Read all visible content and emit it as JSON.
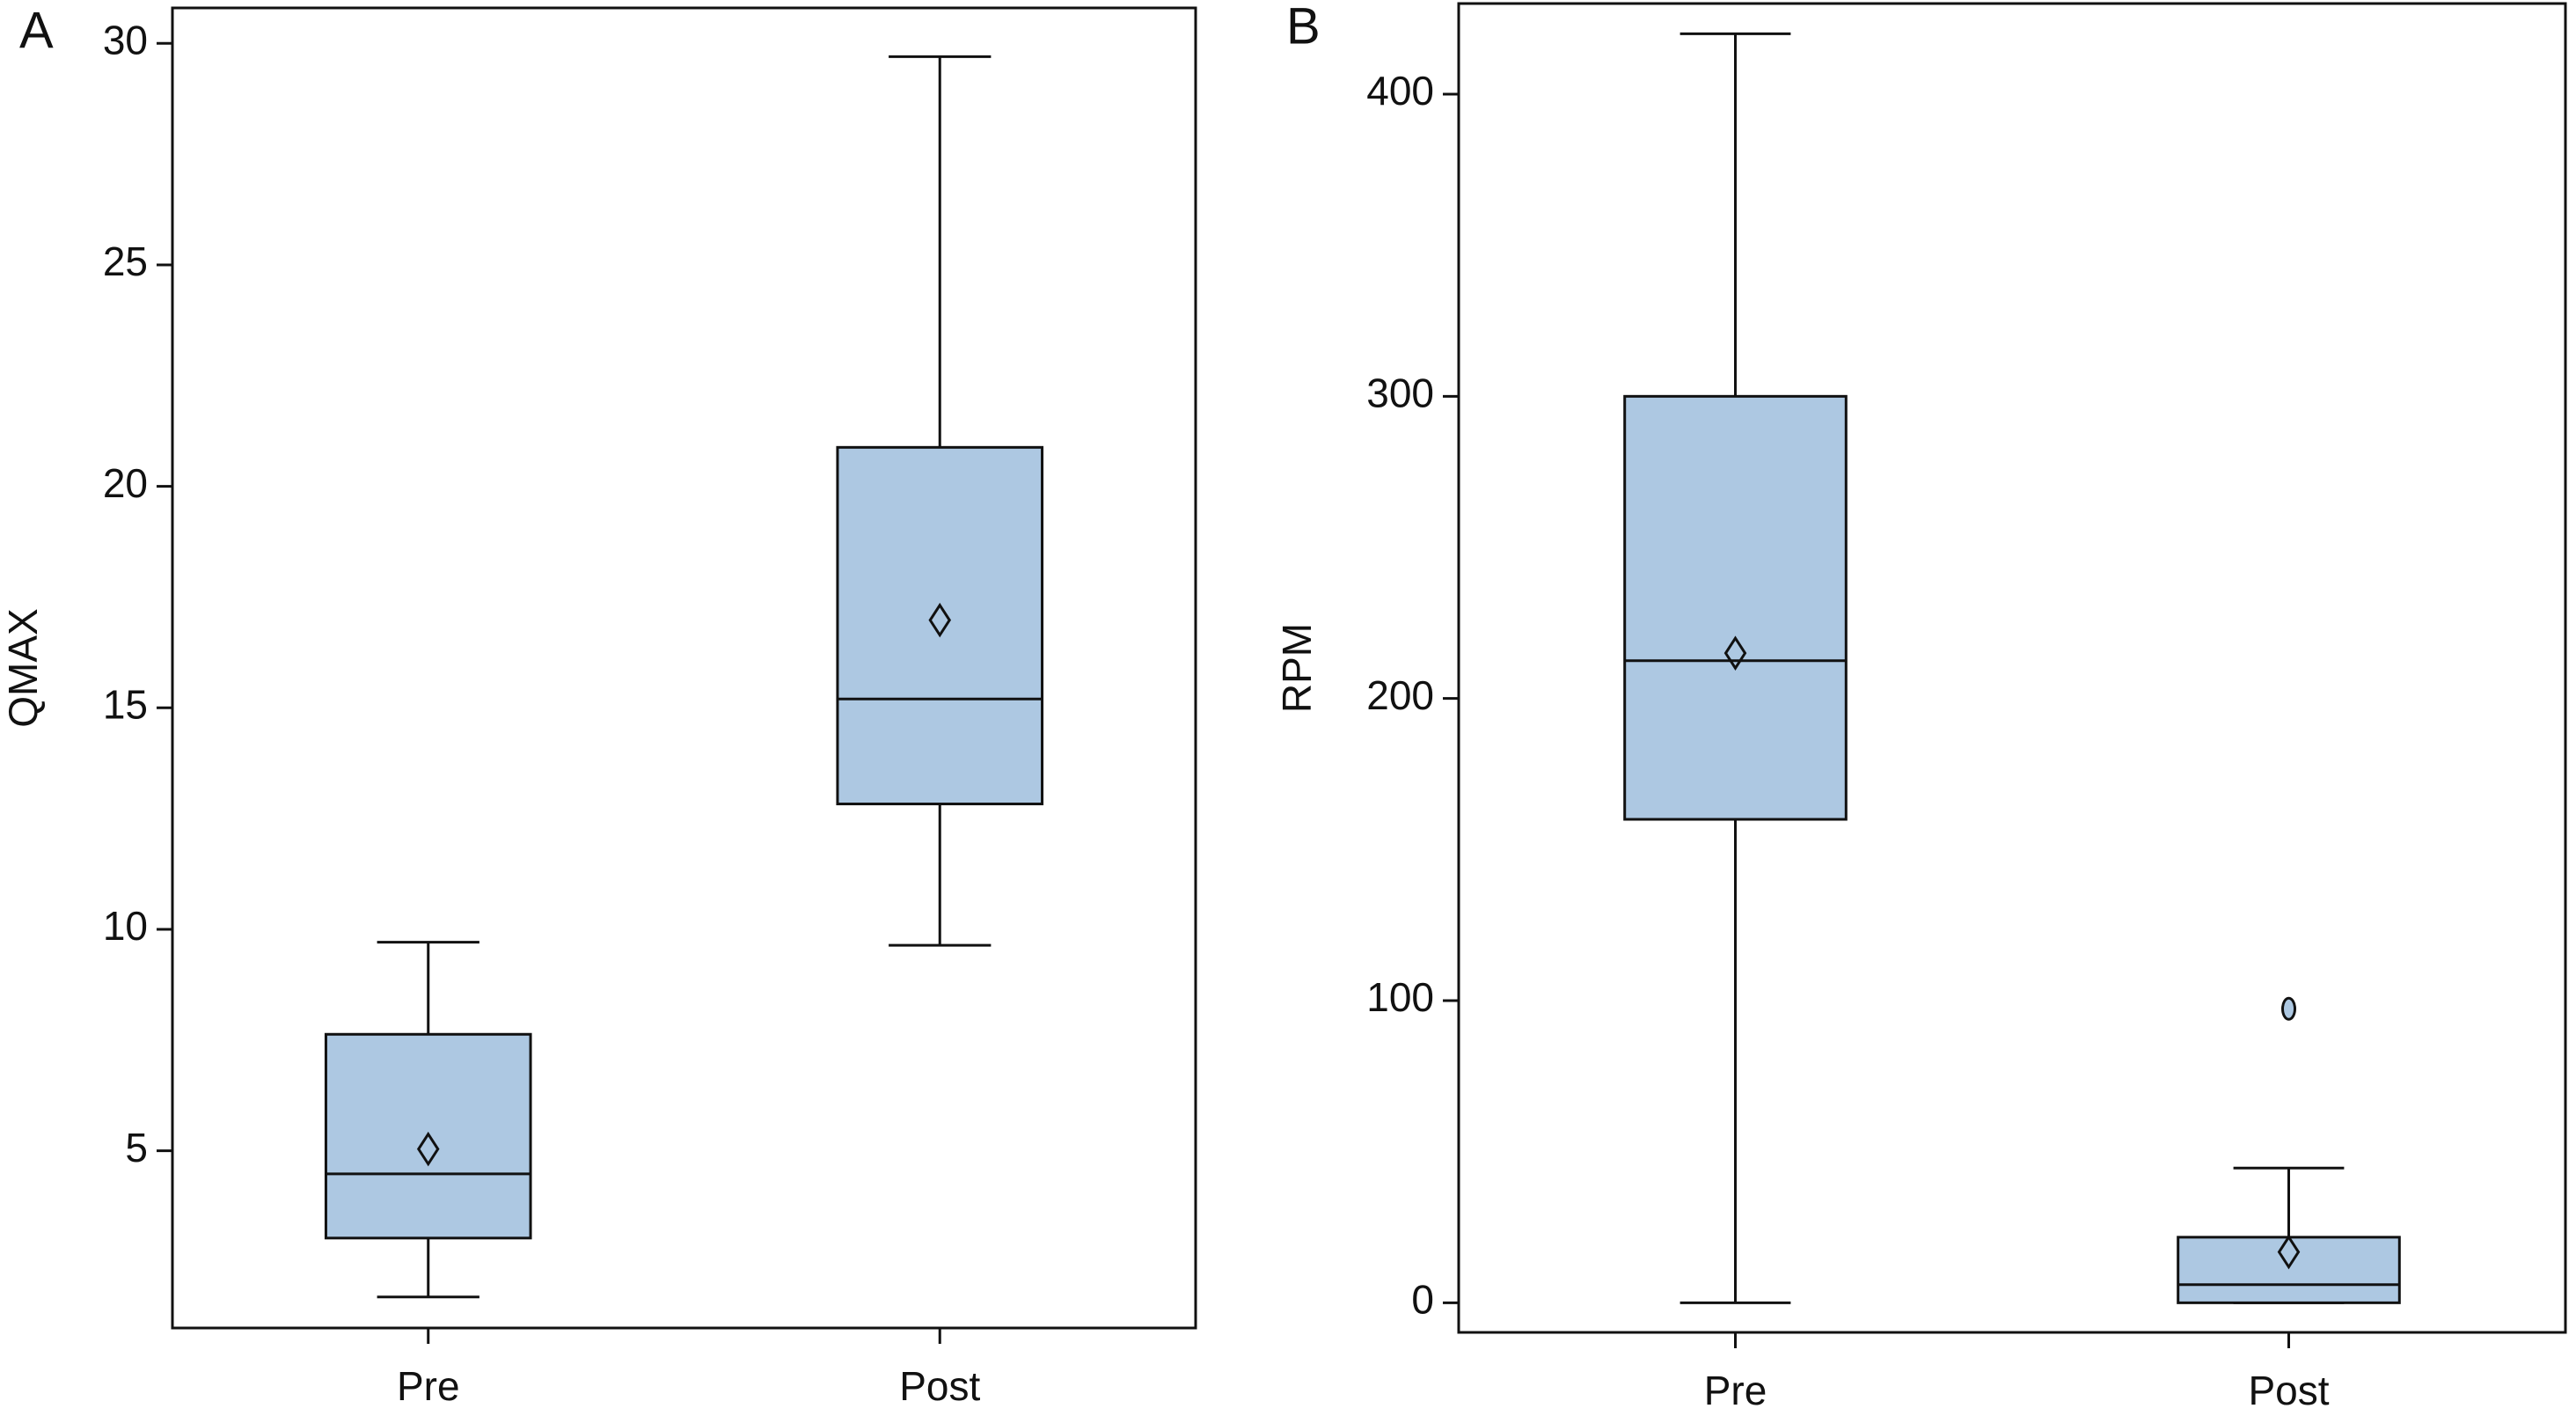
{
  "chart_data": [
    {
      "type": "box",
      "label": "A",
      "ylabel": "QMAX",
      "categories": [
        "Pre",
        "Post"
      ],
      "color": "#adc8e2",
      "boxes": [
        {
          "min": 1.7,
          "q1": 3.03,
          "median": 4.48,
          "q3": 7.63,
          "max": 9.71,
          "mean": 5.04,
          "outliers": []
        },
        {
          "min": 9.64,
          "q1": 12.83,
          "median": 15.2,
          "q3": 20.88,
          "max": 29.7,
          "mean": 16.98,
          "outliers": []
        }
      ],
      "ylim": [
        1.0,
        30.8
      ],
      "yticks": [
        5,
        10,
        15,
        20,
        25,
        30
      ]
    },
    {
      "type": "box",
      "label": "B",
      "ylabel": "RPM",
      "categories": [
        "Pre",
        "Post"
      ],
      "color": "#adc8e2",
      "boxes": [
        {
          "min": 0,
          "q1": 160,
          "median": 212.5,
          "q3": 300,
          "max": 420,
          "mean": 215,
          "outliers": []
        },
        {
          "min": 0,
          "q1": 0,
          "median": 6,
          "q3": 21.7,
          "max": 44.6,
          "mean": 16.8,
          "outliers": [
            97.3
          ]
        }
      ],
      "ylim": [
        -9.8,
        430
      ],
      "yticks": [
        0,
        100,
        200,
        300,
        400
      ]
    }
  ]
}
